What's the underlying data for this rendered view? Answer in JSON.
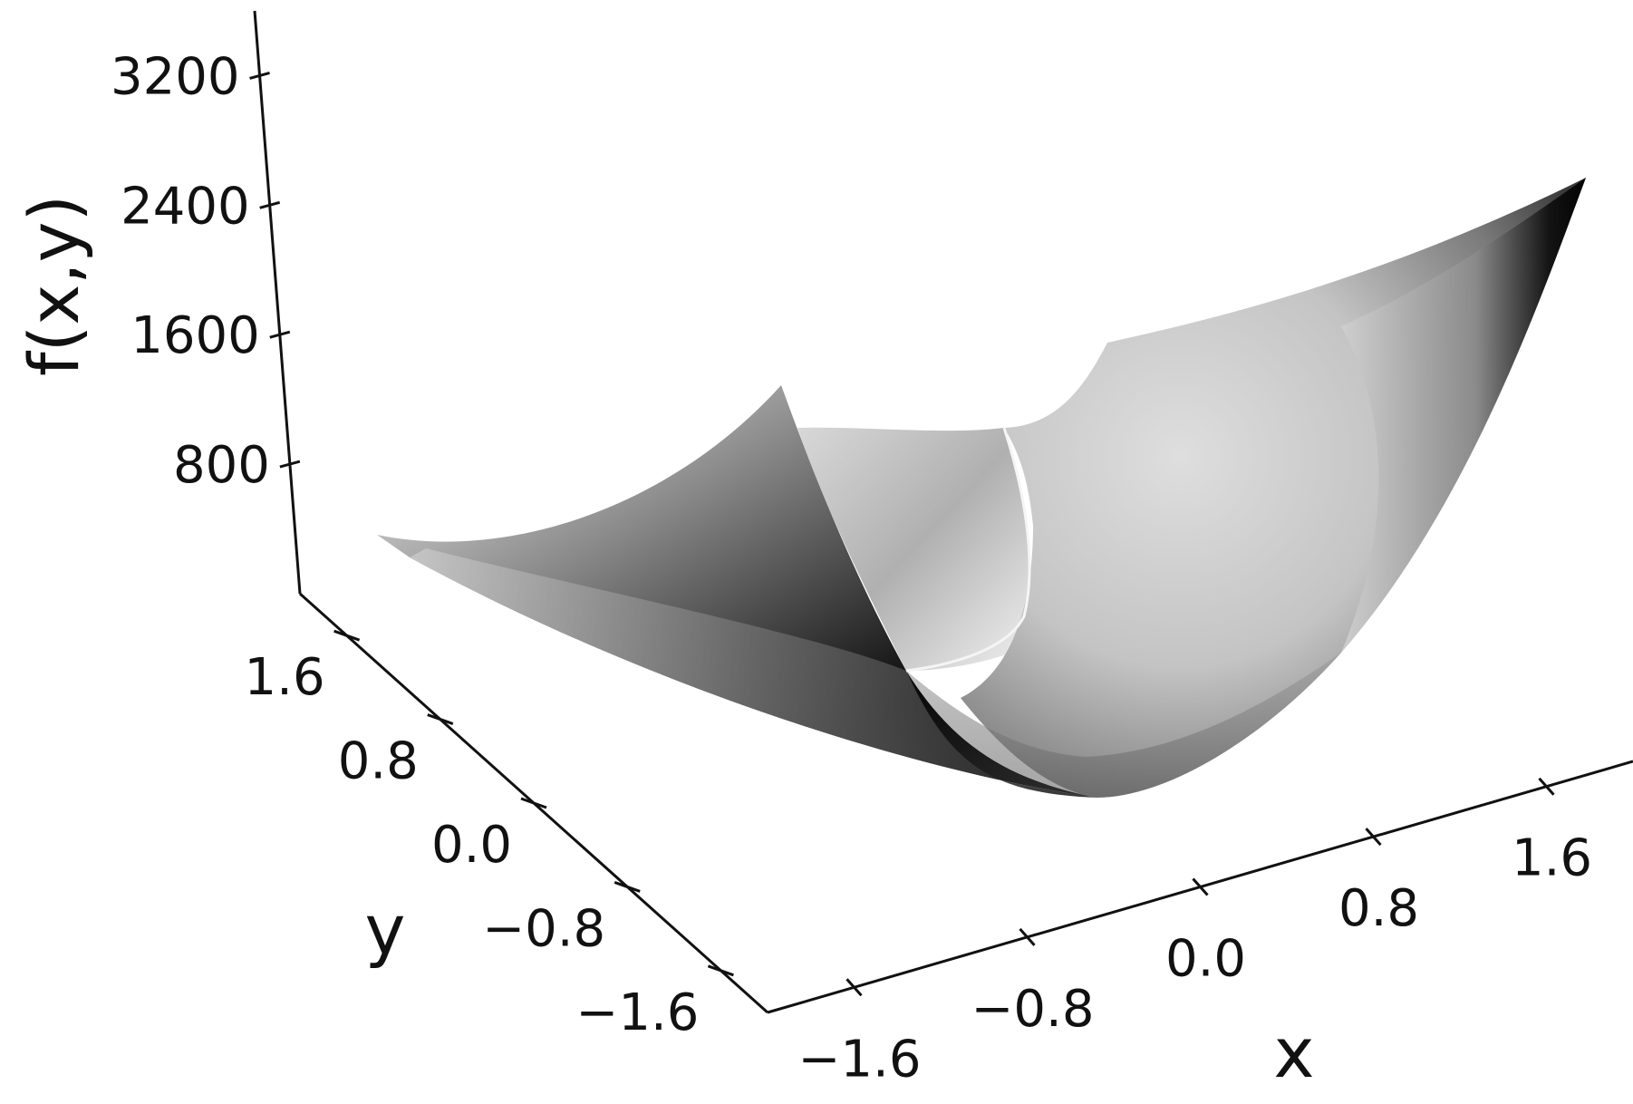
{
  "chart_data": {
    "type": "surface",
    "title": "",
    "xlabel": "x",
    "ylabel": "y",
    "zlabel": "f(x,y)",
    "x_ticks": [
      "−1.6",
      "−0.8",
      "0.0",
      "0.8",
      "1.6"
    ],
    "y_ticks": [
      "−1.6",
      "−0.8",
      "0.0",
      "0.8",
      "1.6"
    ],
    "z_ticks": [
      "800",
      "1600",
      "2400",
      "3200"
    ],
    "xlim": [
      -2,
      2
    ],
    "ylim": [
      -2,
      2
    ],
    "zlim": [
      0,
      3600
    ],
    "surface": {
      "function": "Rosenbrock-like valley",
      "min_value": 0,
      "max_value_at_far_corner": 2900,
      "max_value_at_left_ridge": 1250,
      "colormap": "grayscale",
      "grid": false
    },
    "colors": {
      "axis": "#111111",
      "background": "#ffffff"
    }
  }
}
